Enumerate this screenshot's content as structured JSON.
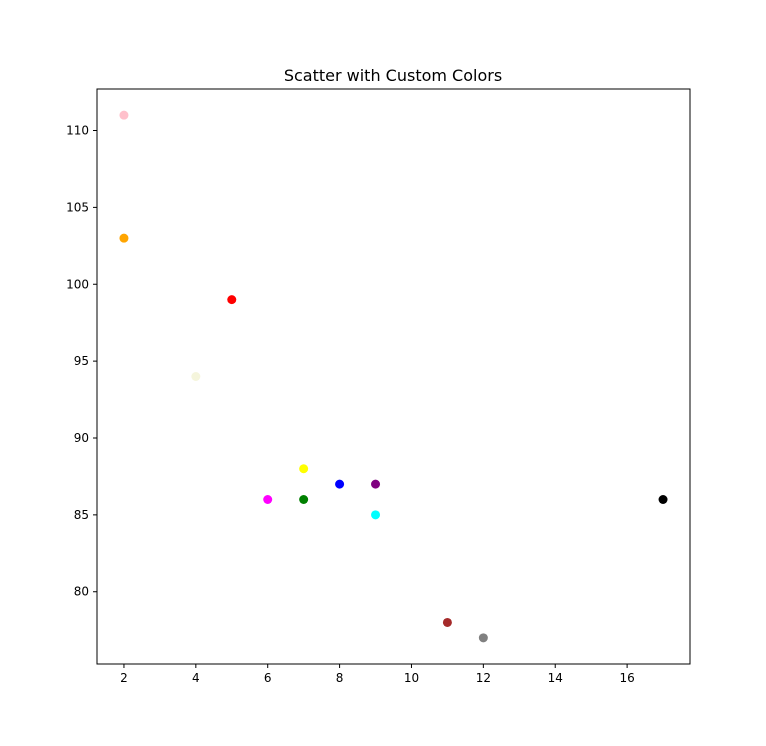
{
  "chart_data": {
    "type": "scatter",
    "title": "Scatter with Custom Colors",
    "xlabel": "",
    "ylabel": "",
    "xlim": [
      1.25,
      17.75
    ],
    "ylim": [
      75.3,
      112.7
    ],
    "xticks": [
      2,
      4,
      6,
      8,
      10,
      12,
      14,
      16
    ],
    "yticks": [
      80,
      85,
      90,
      95,
      100,
      105,
      110
    ],
    "grid": false,
    "points": [
      {
        "x": 5,
        "y": 99,
        "color": "#ff0000"
      },
      {
        "x": 7,
        "y": 86,
        "color": "#008000"
      },
      {
        "x": 8,
        "y": 87,
        "color": "#0000ff"
      },
      {
        "x": 7,
        "y": 88,
        "color": "#ffff00"
      },
      {
        "x": 2,
        "y": 111,
        "color": "#ffc0cb"
      },
      {
        "x": 17,
        "y": 86,
        "color": "#000000"
      },
      {
        "x": 2,
        "y": 103,
        "color": "#ffa500"
      },
      {
        "x": 9,
        "y": 87,
        "color": "#800080"
      },
      {
        "x": 4,
        "y": 94,
        "color": "#f5f5dc"
      },
      {
        "x": 11,
        "y": 78,
        "color": "#a52a2a"
      },
      {
        "x": 12,
        "y": 77,
        "color": "#808080"
      },
      {
        "x": 9,
        "y": 85,
        "color": "#00ffff"
      },
      {
        "x": 6,
        "y": 86,
        "color": "#ff00ff"
      }
    ]
  }
}
